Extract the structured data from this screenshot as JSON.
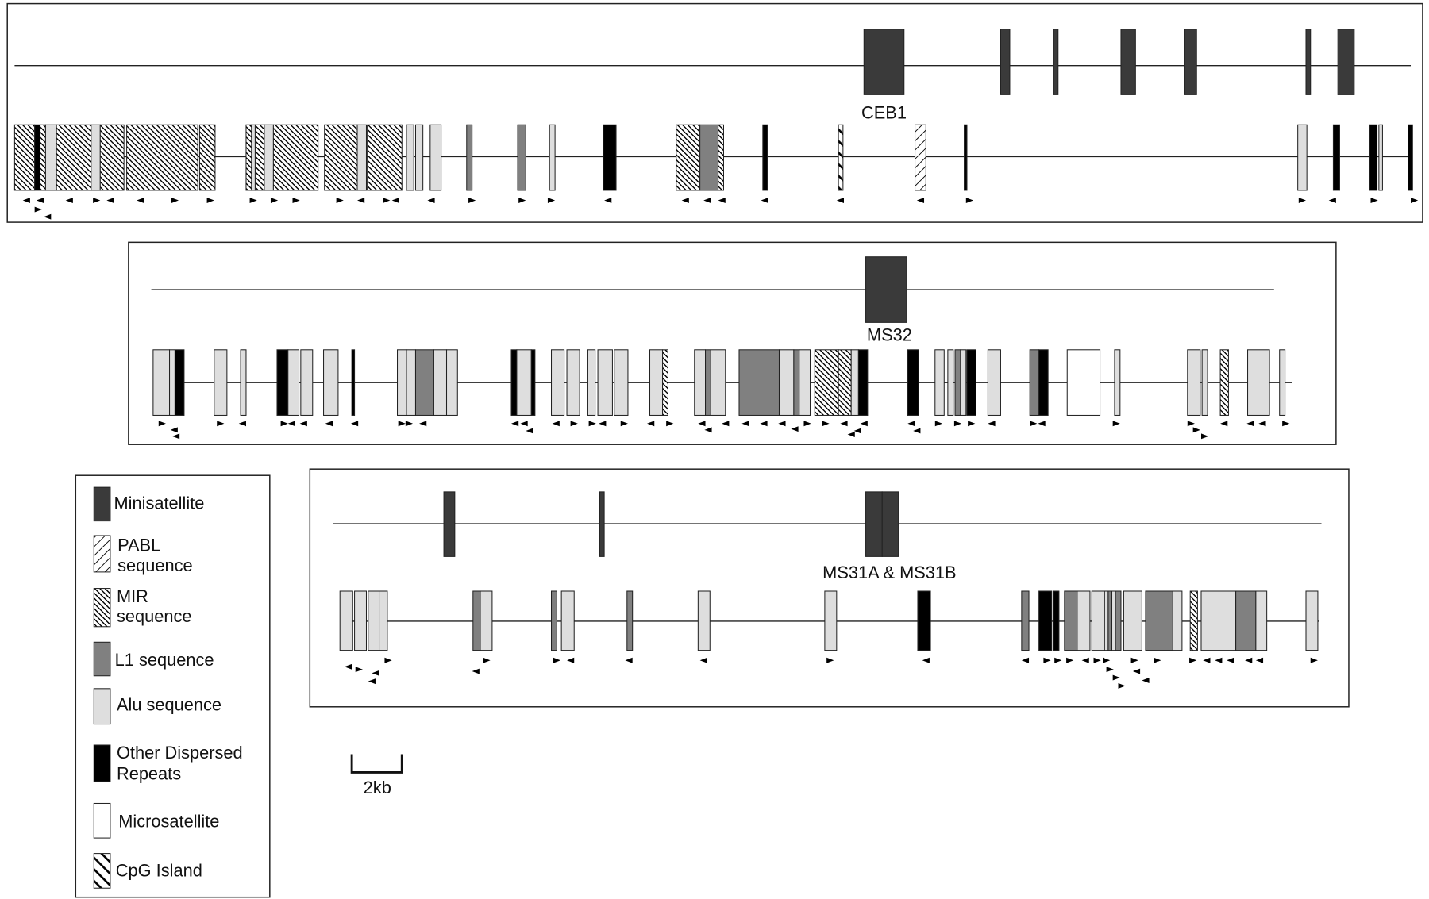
{
  "panels": [
    {
      "label": "CEB1"
    },
    {
      "label": "MS32"
    },
    {
      "label": "MS31A & MS31B"
    }
  ],
  "legend": [
    {
      "lines": [
        "Minisatellite"
      ]
    },
    {
      "lines": [
        "PABL",
        "sequence"
      ]
    },
    {
      "lines": [
        "MIR",
        "sequence"
      ]
    },
    {
      "lines": [
        "L1 sequence"
      ]
    },
    {
      "lines": [
        "Alu sequence"
      ]
    },
    {
      "lines": [
        "Other Dispersed",
        "Repeats"
      ]
    },
    {
      "lines": [
        "Microsatellite"
      ]
    },
    {
      "lines": [
        "CpG Island"
      ]
    }
  ],
  "scale_label": "2kb"
}
